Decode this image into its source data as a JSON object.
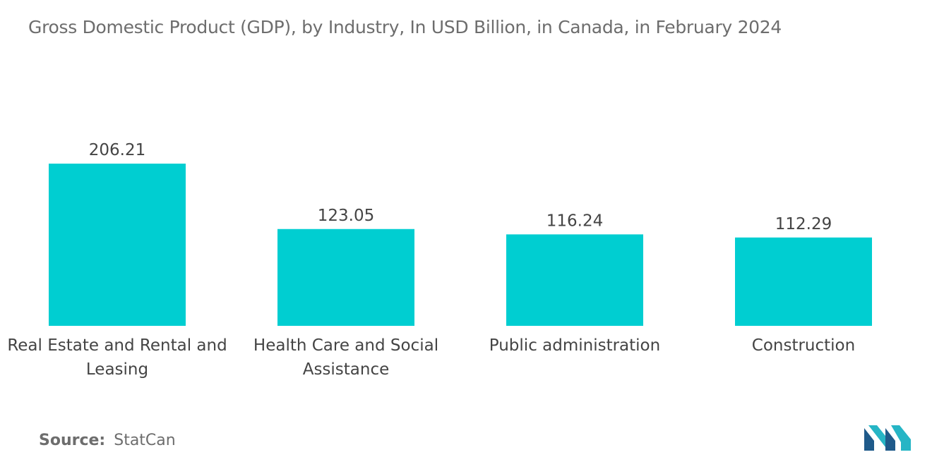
{
  "chart_data": {
    "type": "bar",
    "title": "Gross Domestic Product (GDP), by Industry, In USD Billion, in Canada, in February 2024",
    "categories": [
      [
        "Real Estate and Rental and",
        "Leasing"
      ],
      [
        "Health Care and Social",
        "Assistance"
      ],
      [
        "Public administration"
      ],
      [
        "Construction"
      ]
    ],
    "values": [
      206.21,
      123.05,
      116.24,
      112.29
    ],
    "value_labels": [
      "206.21",
      "123.05",
      "116.24",
      "112.29"
    ],
    "bar_color": "#00ced1",
    "grid": false,
    "legend": "none",
    "xlabel": "",
    "ylabel": ""
  },
  "source": {
    "label": "Source:",
    "value": "StatCan"
  },
  "colors": {
    "title": "#6d6d6d",
    "text": "#444444",
    "logo_dark": "#1f5a8a",
    "logo_light": "#26b5c5"
  },
  "logo": {
    "icon": "mordor-intelligence-logo-icon"
  }
}
